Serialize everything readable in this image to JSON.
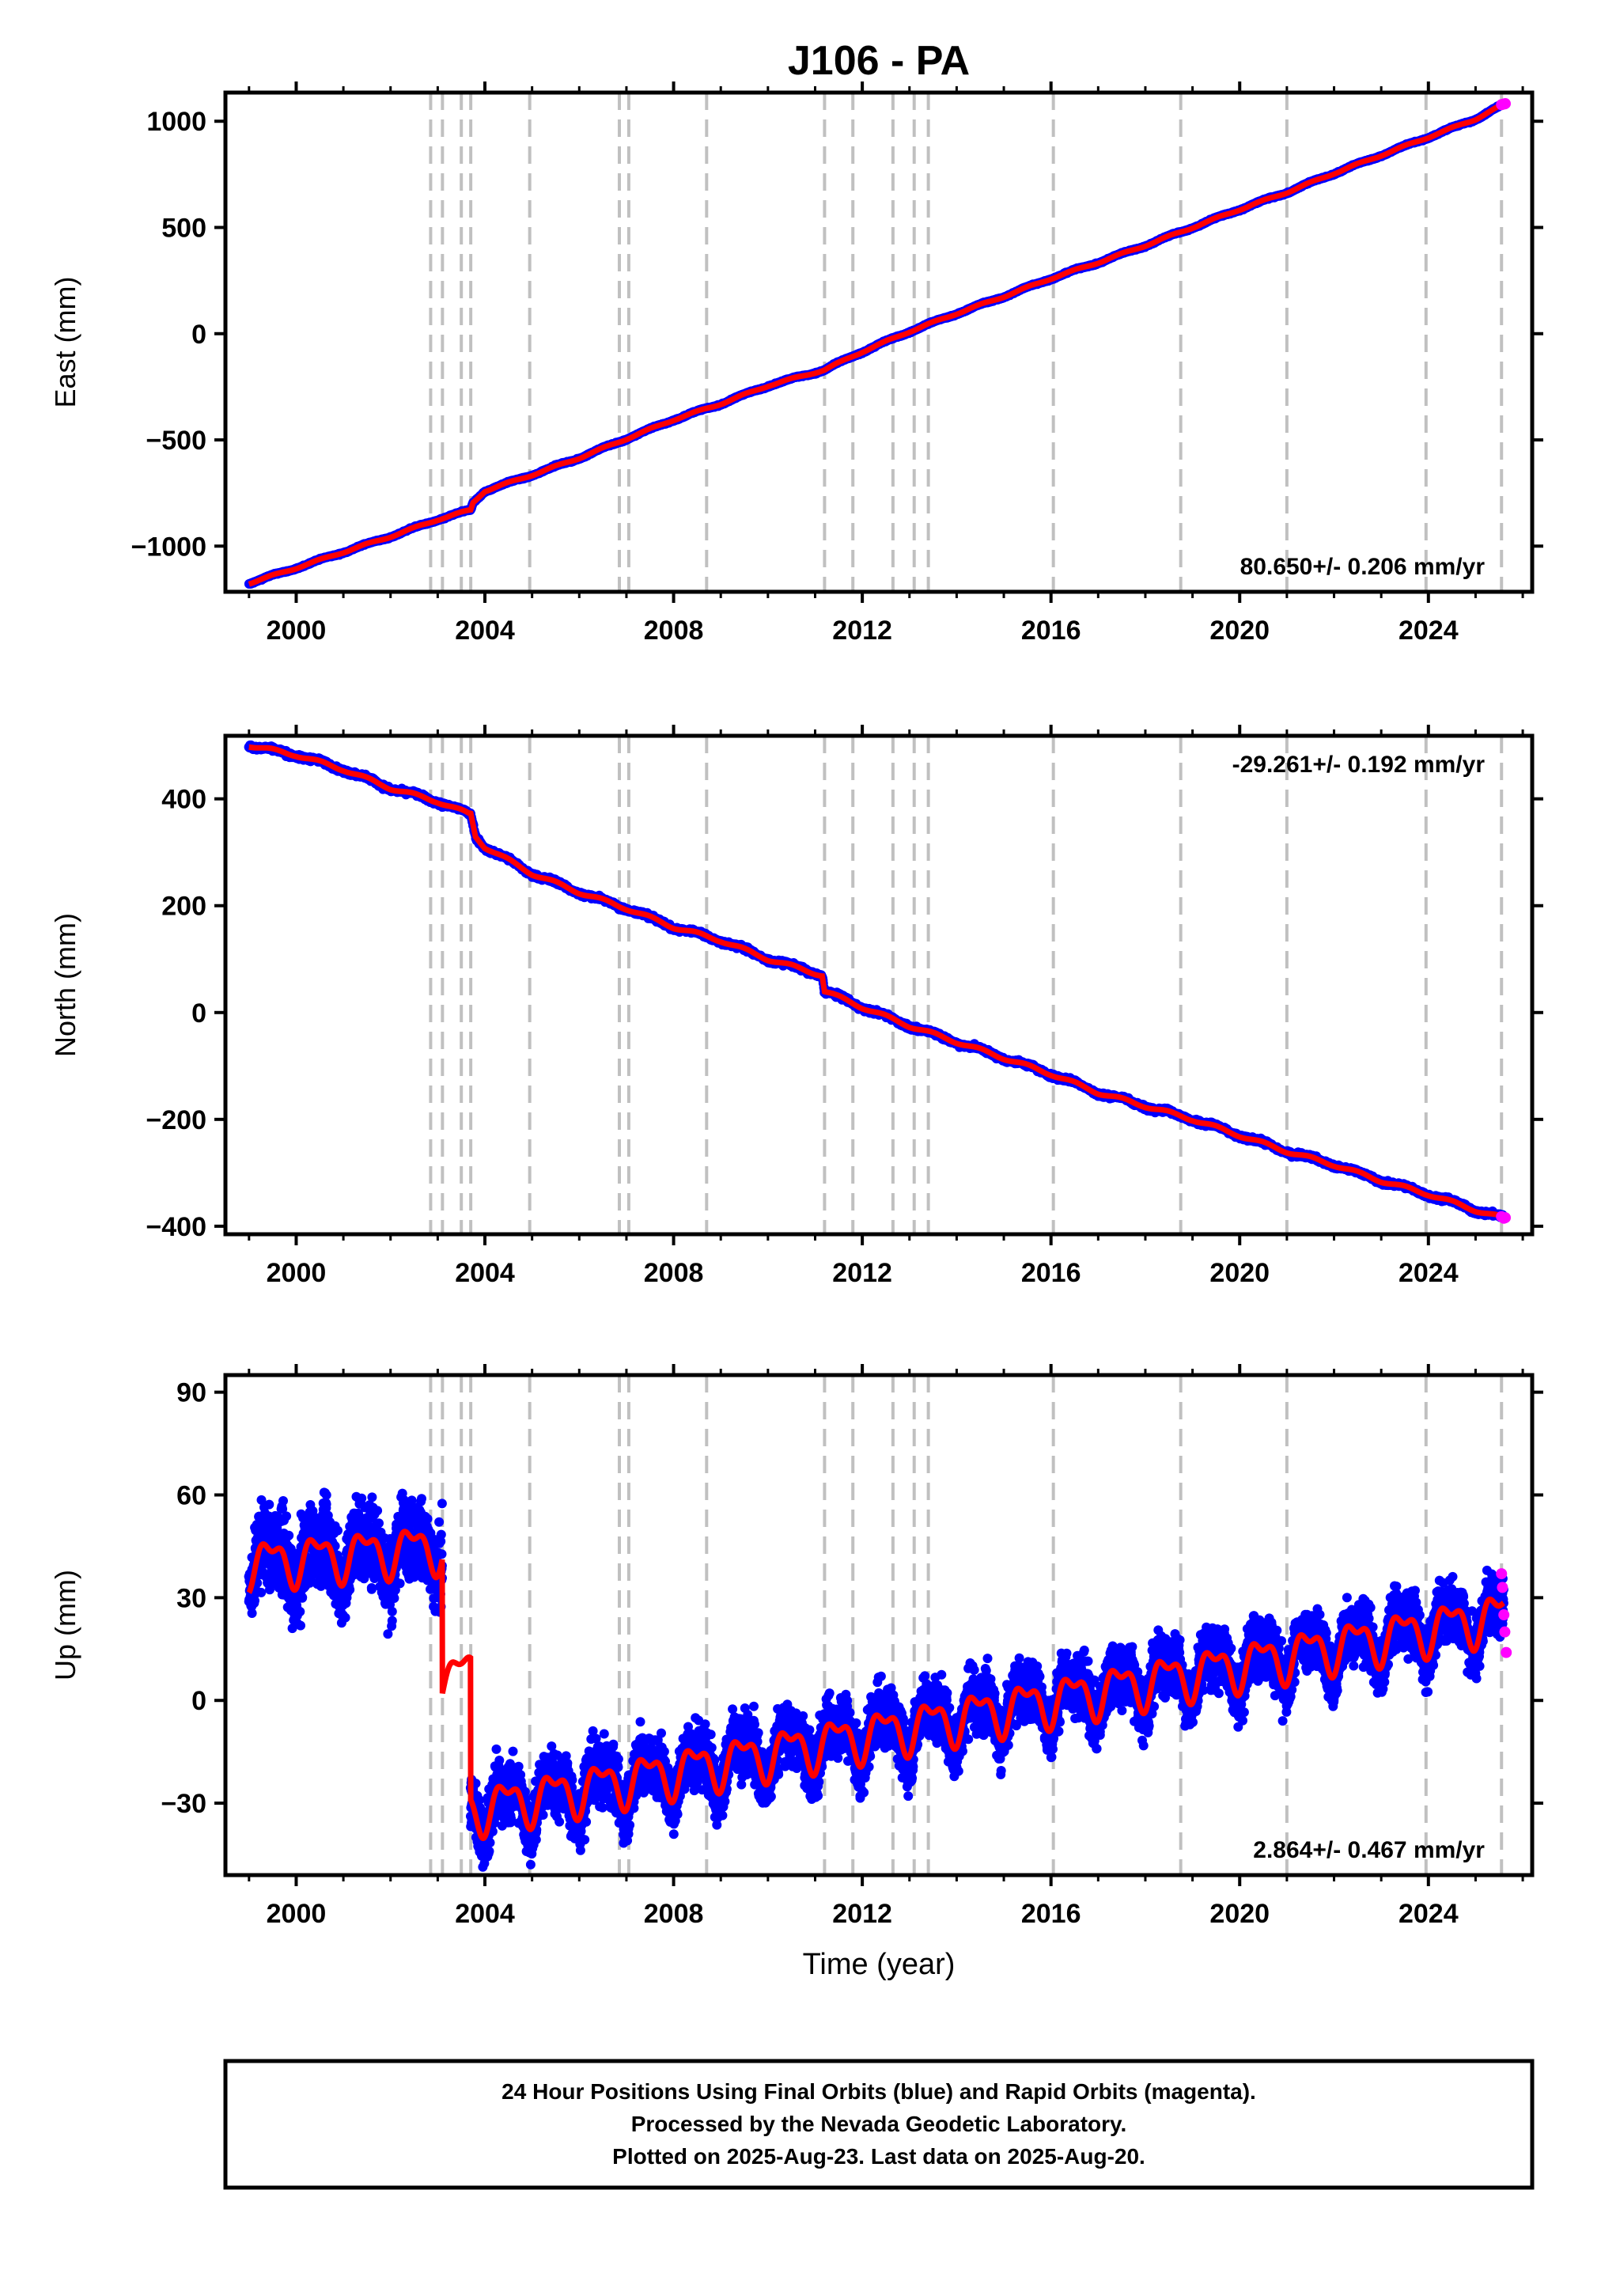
{
  "title": "J106 - PA",
  "xlabel": "Time (year)",
  "colors": {
    "final": "#0000ff",
    "rapid": "#ff00ff",
    "model": "#ff0000",
    "breaks": "#c0c0c0"
  },
  "footer": {
    "line1": "24 Hour Positions Using Final Orbits (blue) and Rapid Orbits (magenta).",
    "line2": "Processed by the Nevada Geodetic Laboratory.",
    "line3": "Plotted on 2025-Aug-23. Last data on 2025-Aug-20."
  },
  "chart_data": [
    {
      "type": "scatter",
      "ylabel": "East (mm)",
      "rate_label": "80.650+/- 0.206 mm/yr",
      "rate_position": "bottom-right",
      "xlim": [
        1998.5,
        2026.2
      ],
      "ylim": [
        -1215,
        1135
      ],
      "x_ticks": [
        2000,
        2004,
        2008,
        2012,
        2016,
        2020,
        2024
      ],
      "y_ticks": [
        1000,
        500,
        0,
        -500,
        -1000
      ],
      "y_tick_labels": [
        "1000",
        "500",
        "0",
        "−500",
        "−1000"
      ],
      "breaks": [
        2002.85,
        2003.1,
        2003.5,
        2003.7,
        2004.95,
        2006.85,
        2007.05,
        2008.7,
        2011.2,
        2011.8,
        2012.65,
        2013.1,
        2013.4,
        2016.05,
        2018.75,
        2021.0,
        2023.95,
        2025.55
      ],
      "x": [
        1999.0,
        2000.0,
        2001.0,
        2002.0,
        2003.0,
        2003.7,
        2003.75,
        2004.0,
        2005.0,
        2006.0,
        2007.0,
        2008.0,
        2009.0,
        2010.0,
        2011.2,
        2012.0,
        2013.0,
        2014.0,
        2015.0,
        2016.0,
        2017.0,
        2018.0,
        2019.0,
        2020.0,
        2021.0,
        2022.0,
        2023.0,
        2024.0,
        2025.0,
        2025.6
      ],
      "y": [
        -1175,
        -1103,
        -1028,
        -955,
        -875,
        -830,
        -795,
        -740,
        -665,
        -585,
        -495,
        -405,
        -330,
        -245,
        -170,
        -85,
        10,
        95,
        175,
        260,
        335,
        415,
        500,
        585,
        665,
        755,
        840,
        925,
        1010,
        1080
      ],
      "noise": 2,
      "annual_amp": 4,
      "rapid": {
        "x": [
          2025.55,
          2025.6,
          2025.63
        ],
        "y": [
          1078,
          1081,
          1083
        ]
      }
    },
    {
      "type": "scatter",
      "ylabel": "North (mm)",
      "rate_label": "-29.261+/- 0.192 mm/yr",
      "rate_position": "top-right",
      "xlim": [
        1998.5,
        2026.2
      ],
      "ylim": [
        -415,
        518
      ],
      "x_ticks": [
        2000,
        2004,
        2008,
        2012,
        2016,
        2020,
        2024
      ],
      "y_ticks": [
        400,
        200,
        0,
        -200,
        -400
      ],
      "y_tick_labels": [
        "400",
        "200",
        "0",
        "−200",
        "−400"
      ],
      "breaks": [
        2002.85,
        2003.1,
        2003.5,
        2003.7,
        2004.95,
        2006.85,
        2007.05,
        2008.7,
        2011.2,
        2011.8,
        2012.65,
        2013.1,
        2013.4,
        2016.05,
        2018.75,
        2021.0,
        2023.95,
        2025.55
      ],
      "x": [
        1999.0,
        2000.0,
        2001.0,
        2002.0,
        2003.0,
        2003.65,
        2003.7,
        2003.8,
        2004.0,
        2005.0,
        2006.0,
        2007.0,
        2008.0,
        2009.0,
        2010.0,
        2011.15,
        2011.2,
        2012.0,
        2013.0,
        2014.0,
        2015.0,
        2016.0,
        2017.0,
        2018.0,
        2019.0,
        2020.0,
        2021.0,
        2022.0,
        2023.0,
        2024.0,
        2025.0,
        2025.6
      ],
      "y": [
        500,
        482,
        455,
        420,
        395,
        372,
        372,
        330,
        310,
        260,
        225,
        195,
        160,
        135,
        100,
        70,
        40,
        10,
        -25,
        -55,
        -85,
        -115,
        -150,
        -175,
        -200,
        -230,
        -260,
        -285,
        -315,
        -340,
        -370,
        -385
      ],
      "noise": 3,
      "annual_amp": 3,
      "rapid": {
        "x": [
          2025.55,
          2025.6,
          2025.63
        ],
        "y": [
          -382,
          -385,
          -384
        ]
      }
    },
    {
      "type": "scatter",
      "ylabel": "Up (mm)",
      "rate_label": "2.864+/- 0.467 mm/yr",
      "rate_position": "bottom-right",
      "xlim": [
        1998.5,
        2026.2
      ],
      "ylim": [
        -51,
        95
      ],
      "x_ticks": [
        2000,
        2004,
        2008,
        2012,
        2016,
        2020,
        2024
      ],
      "y_ticks": [
        90,
        60,
        30,
        0,
        -30
      ],
      "y_tick_labels": [
        "90",
        "60",
        "30",
        "0",
        "−30"
      ],
      "breaks": [
        2002.85,
        2003.1,
        2003.5,
        2003.7,
        2004.95,
        2006.85,
        2007.05,
        2008.7,
        2011.2,
        2011.8,
        2012.65,
        2013.1,
        2013.4,
        2016.05,
        2018.75,
        2021.0,
        2023.95,
        2025.55
      ],
      "segments": [
        {
          "x0": 1999.0,
          "x1": 2003.1,
          "y0": 40,
          "y1": 45,
          "scatter": 8
        },
        {
          "x0": 2003.1,
          "x1": 2003.7,
          "y0": 5,
          "y1": 10,
          "scatter": 0
        },
        {
          "x0": 2003.7,
          "x1": 2025.6,
          "y0": -32,
          "y1": 25,
          "scatter": 6
        }
      ],
      "annual_amp": 6,
      "rapid": {
        "x": [
          2025.55,
          2025.57,
          2025.6,
          2025.62,
          2025.65
        ],
        "y": [
          37,
          33,
          25,
          20,
          14
        ]
      }
    }
  ]
}
